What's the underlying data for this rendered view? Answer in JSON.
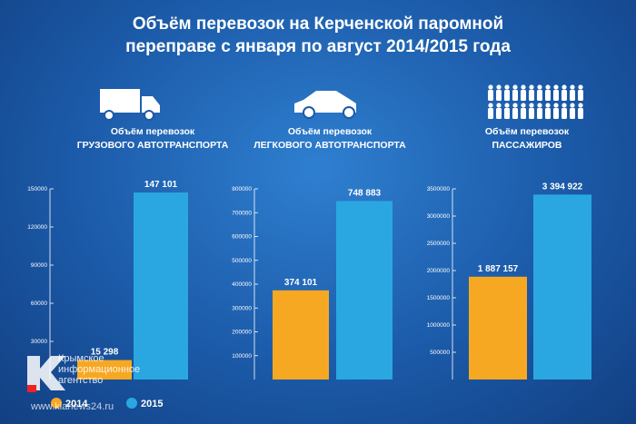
{
  "title": "Объём перевозок на Керченской паромной\nпереправе с января по август 2014/2015 года",
  "legend": {
    "labels": [
      "2014",
      "2015"
    ],
    "colors": [
      "#f7a823",
      "#2aa7e1"
    ]
  },
  "watermark": {
    "agency": "Крымское\nинформационное\nагентство",
    "url": "www.kianews24.ru"
  },
  "chart_data": [
    {
      "type": "bar",
      "subtitle": "Объём перевозок\nГРУЗОВОГО АВТОТРАНСПОРТА",
      "values": [
        15298,
        147101
      ],
      "value_labels": [
        "15 298",
        "147 101"
      ],
      "ylim": [
        0,
        150000
      ],
      "yticks": [
        30000,
        60000,
        90000,
        120000,
        150000
      ]
    },
    {
      "type": "bar",
      "subtitle": "Объём перевозок\nЛЕГКОВОГО АВТОТРАНСПОРТА",
      "values": [
        374101,
        748883
      ],
      "value_labels": [
        "374 101",
        "748 883"
      ],
      "ylim": [
        0,
        800000
      ],
      "yticks": [
        100000,
        200000,
        300000,
        400000,
        500000,
        600000,
        700000,
        800000
      ]
    },
    {
      "type": "bar",
      "subtitle": "Объём перевозок\nПАССАЖИРОВ",
      "values": [
        1887157,
        3394922
      ],
      "value_labels": [
        "1 887 157",
        "3 394 922"
      ],
      "ylim": [
        0,
        3500000
      ],
      "yticks": [
        500000,
        1000000,
        1500000,
        2000000,
        2500000,
        3000000,
        3500000
      ]
    }
  ]
}
